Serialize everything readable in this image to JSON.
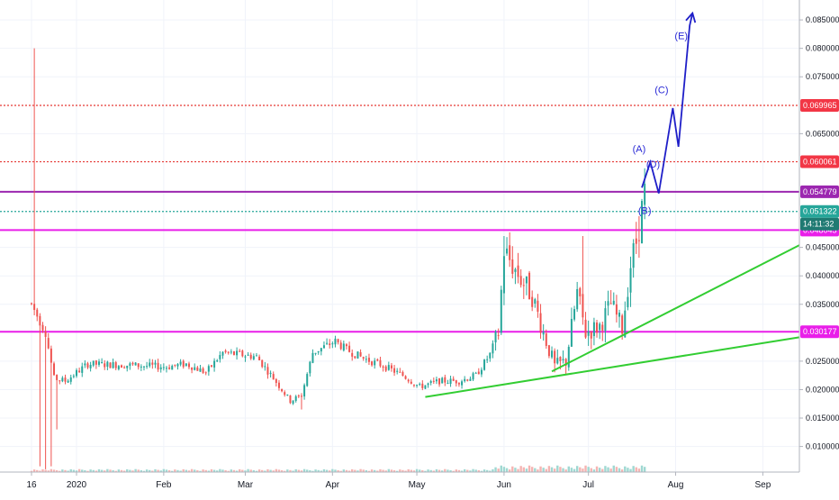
{
  "chart_data": {
    "type": "candlestick",
    "colors": {
      "up": "#26a69a",
      "down": "#ef5350",
      "grid": "#f0f3fa",
      "axis": "#b2b5be",
      "magenta": "#e91ee9",
      "purple": "#9c27b0",
      "red_dotted": "#e53935",
      "teal_dotted": "#26a69a",
      "trend": "#32cd32",
      "wave": "#1f1fc8",
      "badge_red": "#f23645",
      "badge_magenta": "#e91ee9",
      "badge_purple": "#9c27b0",
      "badge_teal": "#26a69a",
      "badge_dark_teal": "#1f7a72"
    },
    "ylim": [
      0.0055,
      0.0885
    ],
    "xlim": [
      0,
      273
    ],
    "y_ticks": [
      {
        "value": 0.085,
        "label": "0.085000"
      },
      {
        "value": 0.08,
        "label": "0.080000"
      },
      {
        "value": 0.075,
        "label": "0.075000"
      },
      {
        "value": 0.065,
        "label": "0.065000"
      },
      {
        "value": 0.045,
        "label": "0.045000"
      },
      {
        "value": 0.04,
        "label": "0.040000"
      },
      {
        "value": 0.035,
        "label": "0.035000"
      },
      {
        "value": 0.025,
        "label": "0.025000"
      },
      {
        "value": 0.02,
        "label": "0.020000"
      },
      {
        "value": 0.015,
        "label": "0.015000"
      },
      {
        "value": 0.01,
        "label": "0.010000"
      }
    ],
    "x_ticks": [
      {
        "day": 0,
        "label": "16"
      },
      {
        "day": 16,
        "label": "2020"
      },
      {
        "day": 47,
        "label": "Feb"
      },
      {
        "day": 76,
        "label": "Mar"
      },
      {
        "day": 107,
        "label": "Apr"
      },
      {
        "day": 137,
        "label": "May"
      },
      {
        "day": 168,
        "label": "Jun"
      },
      {
        "day": 198,
        "label": "Jul"
      },
      {
        "day": 229,
        "label": "Aug"
      },
      {
        "day": 260,
        "label": "Sep"
      }
    ],
    "price_levels": [
      {
        "name": "red-dotted-level-upper",
        "value": 0.069965,
        "label": "0.069965",
        "style": "dotted",
        "color": "#e53935",
        "badge": "#f23645"
      },
      {
        "name": "red-dotted-level-lower",
        "value": 0.060061,
        "label": "0.060061",
        "style": "dotted",
        "color": "#e53935",
        "badge": "#f23645"
      },
      {
        "name": "purple-level",
        "value": 0.054779,
        "label": "0.054779",
        "style": "solid",
        "color": "#9c27b0",
        "badge": "#9c27b0"
      },
      {
        "name": "current-price-level",
        "value": 0.051322,
        "label": "0.051322",
        "style": "dotted",
        "color": "#26a69a",
        "badge": "#26a69a"
      },
      {
        "name": "magenta-level-upper",
        "value": 0.048045,
        "label": "0.048045",
        "style": "solid",
        "color": "#e91ee9",
        "badge": "#e91ee9"
      },
      {
        "name": "magenta-level-lower",
        "value": 0.030177,
        "label": "0.030177",
        "style": "solid",
        "color": "#e91ee9",
        "badge": "#e91ee9"
      }
    ],
    "countdown": {
      "label": "14:11:32",
      "value": 0.0491
    },
    "trend_lines": [
      {
        "name": "lower-trend-line",
        "points": [
          [
            140,
            0.0187
          ],
          [
            273,
            0.0292
          ]
        ]
      },
      {
        "name": "upper-trend-line",
        "points": [
          [
            185,
            0.0232
          ],
          [
            273,
            0.0454
          ]
        ]
      }
    ],
    "wave_path": [
      [
        217,
        0.0555
      ],
      [
        220,
        0.06
      ],
      [
        223,
        0.0545
      ],
      [
        228,
        0.0695
      ],
      [
        230,
        0.0627
      ],
      [
        234,
        0.084
      ],
      [
        235,
        0.0862
      ]
    ],
    "wave_labels": [
      {
        "label": "(A)",
        "day": 216,
        "value": 0.0617
      },
      {
        "label": "(B)",
        "day": 218,
        "value": 0.0509
      },
      {
        "label": "(C)",
        "day": 224,
        "value": 0.0721
      },
      {
        "label": "(D)",
        "day": 221,
        "value": 0.059
      },
      {
        "label": "(E)",
        "day": 231,
        "value": 0.0816
      }
    ],
    "candles": [],
    "volume": []
  }
}
